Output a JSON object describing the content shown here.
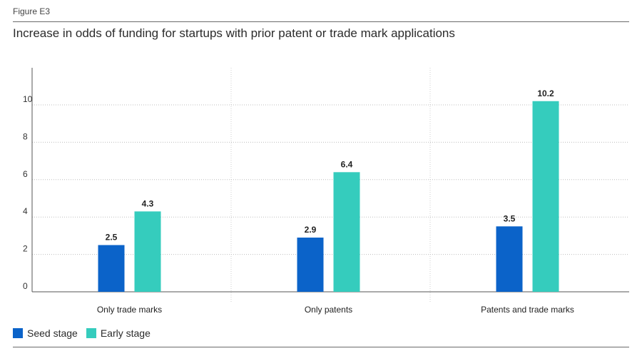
{
  "figure_label": "Figure E3",
  "title": "Increase in odds of funding for startups with prior patent or trade mark applications",
  "chart_data": {
    "type": "bar",
    "categories": [
      "Only trade marks",
      "Only patents",
      "Patents and trade marks"
    ],
    "series": [
      {
        "name": "Seed stage",
        "values": [
          2.5,
          2.9,
          3.5
        ],
        "color": "#0b63c9"
      },
      {
        "name": "Early stage",
        "values": [
          4.3,
          6.4,
          10.2
        ],
        "color": "#35ccbd"
      }
    ],
    "yticks": [
      0,
      2,
      4,
      6,
      8,
      10
    ],
    "ylim": [
      0,
      12
    ],
    "grid": true,
    "legend": "bottom-left",
    "data_labels": true
  }
}
